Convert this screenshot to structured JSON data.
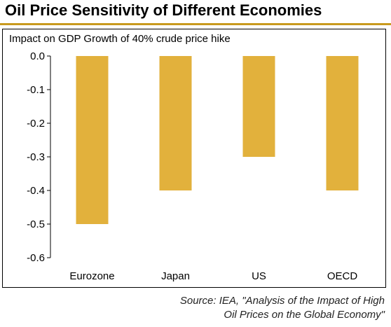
{
  "header": {
    "title": "Oil Price Sensitivity of Different Economies"
  },
  "source": {
    "line1": "Source: IEA, \"Analysis of the Impact of High",
    "line2": "Oil Prices on the  Global Economy\""
  },
  "colors": {
    "bar": "#e2b13c",
    "rule": "#c99a1e"
  },
  "chart_data": {
    "type": "bar",
    "title": "Oil Price Sensitivity of Different Economies",
    "ylabel": "Impact on GDP Growth of 40% crude price hike",
    "xlabel": "",
    "categories": [
      "Eurozone",
      "Japan",
      "US",
      "OECD"
    ],
    "values": [
      -0.5,
      -0.4,
      -0.3,
      -0.4
    ],
    "ylim": [
      -0.6,
      0.0
    ],
    "yticks": [
      "0.0",
      "-0.1",
      "-0.2",
      "-0.3",
      "-0.4",
      "-0.5",
      "-0.6"
    ],
    "grid": false,
    "legend": "none"
  }
}
